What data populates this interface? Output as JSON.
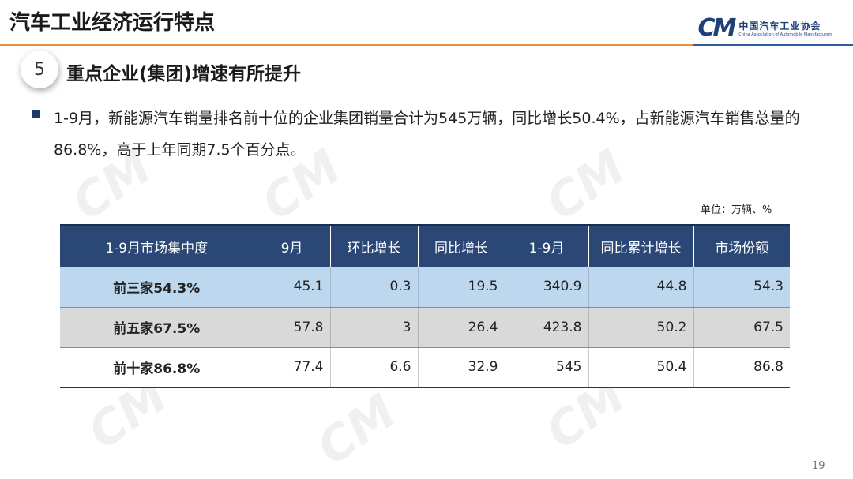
{
  "header": {
    "title": "汽车工业经济运行特点",
    "logo_mark": "CM",
    "logo_cn": "中国汽车工业协会",
    "logo_en": "China Association of Automobile Manufacturers"
  },
  "section": {
    "number": "5",
    "title": "重点企业(集团)增速有所提升"
  },
  "bullet": {
    "text": "1-9月，新能源汽车销量排名前十位的企业集团销量合计为545万辆，同比增长50.4%，占新能源汽车销售总量的86.8%，高于上年同期7.5个百分点。"
  },
  "unit_label": "单位：万辆、%",
  "table": {
    "headers": [
      "1-9月市场集中度",
      "9月",
      "环比增长",
      "同比增长",
      "1-9月",
      "同比累计增长",
      "市场份额"
    ],
    "rows": [
      [
        "前三家54.3%",
        "45.1",
        "0.3",
        "19.5",
        "340.9",
        "44.8",
        "54.3"
      ],
      [
        "前五家67.5%",
        "57.8",
        "3",
        "26.4",
        "423.8",
        "50.2",
        "67.5"
      ],
      [
        "前十家86.8%",
        "77.4",
        "6.6",
        "32.9",
        "545",
        "50.4",
        "86.8"
      ]
    ]
  },
  "page_number": "19",
  "colors": {
    "header_rule_orange": "#e8903e",
    "header_rule_blue": "#2b5c9f",
    "table_header_bg": "#2a4775",
    "row_top3_bg": "#bdd7ee",
    "row_top5_bg": "#d9d9d9",
    "row_top10_bg": "#ffffff"
  },
  "icons": {
    "logo": "cm-logo-icon",
    "bullet": "square-bullet-icon"
  }
}
